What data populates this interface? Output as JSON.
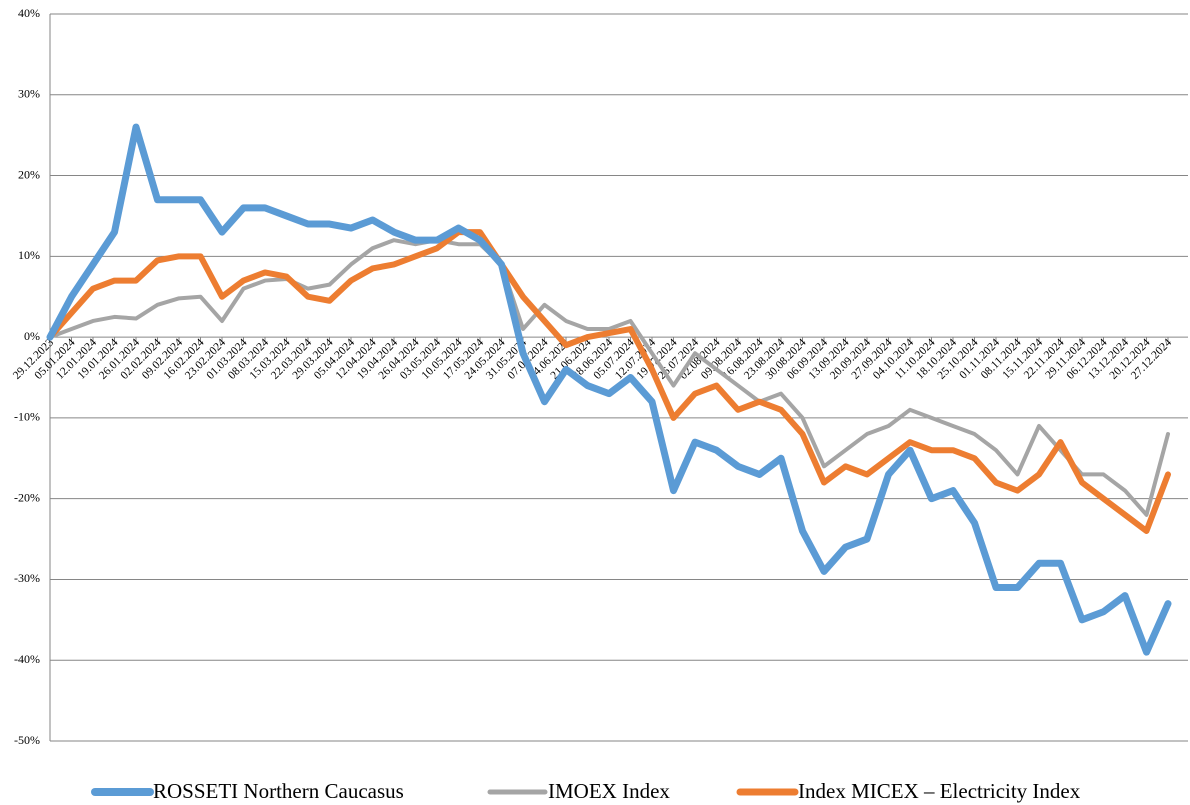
{
  "chart_data": {
    "type": "line",
    "categories": [
      "29.12.2023",
      "05.01.2024",
      "12.01.2024",
      "19.01.2024",
      "26.01.2024",
      "02.02.2024",
      "09.02.2024",
      "16.02.2024",
      "23.02.2024",
      "01.03.2024",
      "08.03.2024",
      "15.03.2024",
      "22.03.2024",
      "29.03.2024",
      "05.04.2024",
      "12.04.2024",
      "19.04.2024",
      "26.04.2024",
      "03.05.2024",
      "10.05.2024",
      "17.05.2024",
      "24.05.2024",
      "31.05.2024",
      "07.06.2024",
      "14.06.2024",
      "21.06.2024",
      "28.06.2024",
      "05.07.2024",
      "12.07.2024",
      "19.07.2024",
      "26.07.2024",
      "02.08.2024",
      "09.08.2024",
      "16.08.2024",
      "23.08.2024",
      "30.08.2024",
      "06.09.2024",
      "13.09.2024",
      "20.09.2024",
      "27.09.2024",
      "04.10.2024",
      "11.10.2024",
      "18.10.2024",
      "25.10.2024",
      "01.11.2024",
      "08.11.2024",
      "15.11.2024",
      "22.11.2024",
      "29.11.2024",
      "06.12.2024",
      "13.12.2024",
      "20.12.2024",
      "27.12.2024"
    ],
    "series": [
      {
        "name": "ROSSETI Northern Caucasus",
        "color": "#5b9bd5",
        "values": [
          0,
          5,
          9,
          13,
          26,
          17,
          17,
          17,
          13,
          16,
          16,
          15,
          14,
          14,
          13.5,
          14.5,
          13,
          12,
          12,
          13.5,
          12,
          9,
          -2,
          -8,
          -4,
          -6,
          -7,
          -5,
          -8,
          -19,
          -13,
          -14,
          -16,
          -17,
          -15,
          -24,
          -29,
          -26,
          -25,
          -17,
          -14,
          -20,
          -19,
          -23,
          -31,
          -31,
          -28,
          -28,
          -35,
          -34,
          -32,
          -39,
          -33
        ]
      },
      {
        "name": "IMOEX Index",
        "color": "#a5a5a5",
        "values": [
          0,
          1,
          2,
          2.5,
          2.3,
          4,
          4.8,
          5,
          2,
          6,
          7,
          7.2,
          6,
          6.5,
          9,
          11,
          12,
          11.5,
          12,
          11.5,
          11.5,
          9,
          1,
          4,
          2,
          1,
          1,
          2,
          -2,
          -6,
          -2,
          -4,
          -6,
          -8,
          -7,
          -10,
          -16,
          -14,
          -12,
          -11,
          -9,
          -10,
          -11,
          -12,
          -14,
          -17,
          -11,
          -14,
          -17,
          -17,
          -19,
          -22,
          -12
        ]
      },
      {
        "name": "Index MICEX – Electricity Index",
        "color": "#ed7d31",
        "values": [
          0,
          3,
          6,
          7,
          7,
          9.5,
          10,
          10,
          5,
          7,
          8,
          7.5,
          5,
          4.5,
          7,
          8.5,
          9,
          10,
          11,
          13,
          13,
          9,
          5,
          2,
          -1,
          0,
          0.5,
          1,
          -4,
          -10,
          -7,
          -6,
          -9,
          -8,
          -9,
          -12,
          -18,
          -16,
          -17,
          -15,
          -13,
          -14,
          -14,
          -15,
          -18,
          -19,
          -17,
          -13,
          -18,
          -20,
          -22,
          -24,
          -17
        ]
      }
    ],
    "ylim": [
      -50,
      40
    ],
    "yticks": [
      {
        "value": -50,
        "label": "-50%"
      },
      {
        "value": -40,
        "label": "-40%"
      },
      {
        "value": -30,
        "label": "-30%"
      },
      {
        "value": -20,
        "label": "-20%"
      },
      {
        "value": -10,
        "label": "-10%"
      },
      {
        "value": 0,
        "label": "0%"
      },
      {
        "value": 10,
        "label": "10%"
      },
      {
        "value": 20,
        "label": "20%"
      },
      {
        "value": 30,
        "label": "30%"
      },
      {
        "value": 40,
        "label": "40%"
      }
    ],
    "grid": true
  }
}
